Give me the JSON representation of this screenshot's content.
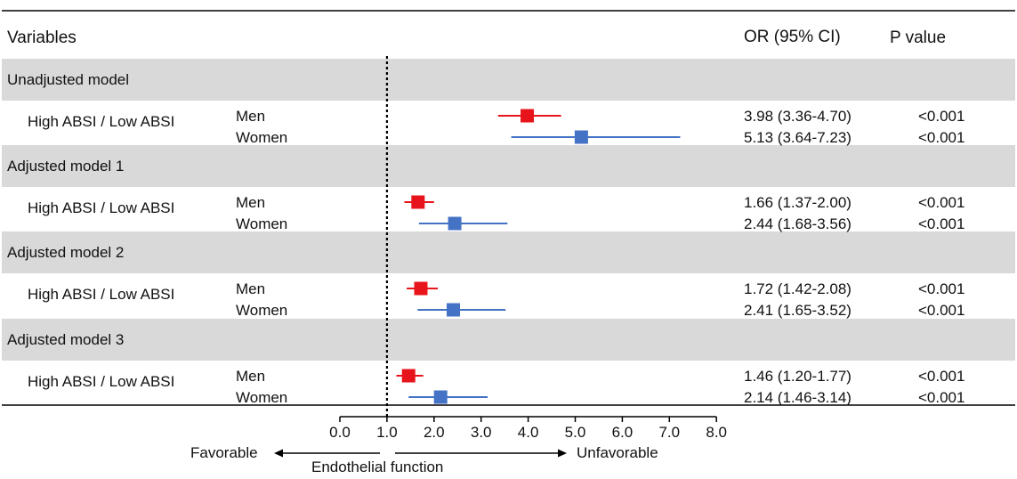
{
  "header": {
    "variables": "Variables",
    "or_ci": "OR (95% CI)",
    "p_value": "P value"
  },
  "chart_data": {
    "type": "forest",
    "x_axis": {
      "ticks": [
        "0.0",
        "1.0",
        "2.0",
        "3.0",
        "4.0",
        "5.0",
        "6.0",
        "7.0",
        "8.0"
      ],
      "range": [
        0,
        8
      ],
      "reference_line": 1.0,
      "left_label": "Favorable",
      "right_label": "Unfavorable",
      "center_label": "Endothelial function"
    },
    "groups": [
      {
        "title": "Unadjusted model",
        "row_label": "High ABSI / Low ABSI",
        "rows": [
          {
            "sex": "Men",
            "or": 3.98,
            "lo": 3.36,
            "hi": 4.7,
            "ci_text": "3.98 (3.36-4.70)",
            "p": "<0.001",
            "color": "#e8141b"
          },
          {
            "sex": "Women",
            "or": 5.13,
            "lo": 3.64,
            "hi": 7.23,
            "ci_text": "5.13 (3.64-7.23)",
            "p": "<0.001",
            "color": "#4472c4"
          }
        ]
      },
      {
        "title": "Adjusted model 1",
        "row_label": "High ABSI / Low ABSI",
        "rows": [
          {
            "sex": "Men",
            "or": 1.66,
            "lo": 1.37,
            "hi": 2.0,
            "ci_text": "1.66 (1.37-2.00)",
            "p": "<0.001",
            "color": "#e8141b"
          },
          {
            "sex": "Women",
            "or": 2.44,
            "lo": 1.68,
            "hi": 3.56,
            "ci_text": "2.44 (1.68-3.56)",
            "p": "<0.001",
            "color": "#4472c4"
          }
        ]
      },
      {
        "title": "Adjusted model 2",
        "row_label": "High ABSI / Low ABSI",
        "rows": [
          {
            "sex": "Men",
            "or": 1.72,
            "lo": 1.42,
            "hi": 2.08,
            "ci_text": "1.72 (1.42-2.08)",
            "p": "<0.001",
            "color": "#e8141b"
          },
          {
            "sex": "Women",
            "or": 2.41,
            "lo": 1.65,
            "hi": 3.52,
            "ci_text": "2.41 (1.65-3.52)",
            "p": "<0.001",
            "color": "#4472c4"
          }
        ]
      },
      {
        "title": "Adjusted model 3",
        "row_label": "High ABSI / Low ABSI",
        "rows": [
          {
            "sex": "Men",
            "or": 1.46,
            "lo": 1.2,
            "hi": 1.77,
            "ci_text": "1.46 (1.20-1.77)",
            "p": "<0.001",
            "color": "#e8141b"
          },
          {
            "sex": "Women",
            "or": 2.14,
            "lo": 1.46,
            "hi": 3.14,
            "ci_text": "2.14 (1.46-3.14)",
            "p": "<0.001",
            "color": "#4472c4"
          }
        ]
      }
    ]
  }
}
